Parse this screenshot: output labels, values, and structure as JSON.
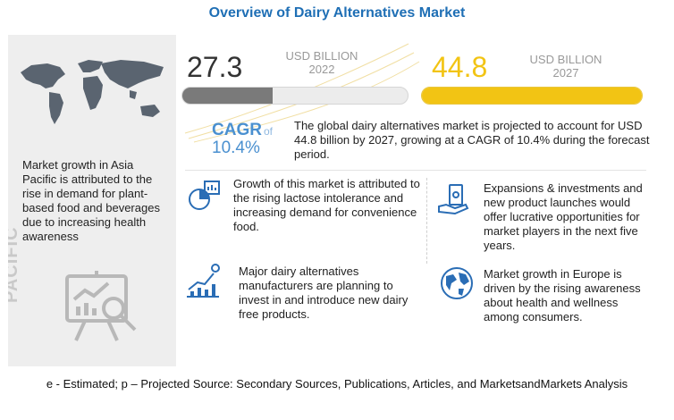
{
  "title": "Overview of Dairy Alternatives Market",
  "left_panel": {
    "description": "Market growth in Asia Pacific is attributed to the rise in demand for plant-based food and beverages due to increasing health awareness",
    "region_label": "ASIA PACIFIC"
  },
  "market_2022": {
    "value": "27.3",
    "unit": "USD BILLION",
    "year": "2022",
    "bar_fill_fraction": 0.4
  },
  "market_2027": {
    "value": "44.8",
    "unit": "USD BILLION",
    "year": "2027",
    "bar_fill_fraction": 1.0
  },
  "cagr": {
    "label": "CAGR",
    "of": "of",
    "value": "10.4%"
  },
  "summary": "The global dairy alternatives market is projected to account for USD 44.8 billion by 2027, growing at a CAGR of 10.4% during the forecast period.",
  "insights": [
    {
      "icon": "lactose-chart-icon",
      "text": "Growth of this market is attributed to the rising lactose intolerance and increasing demand for convenience food."
    },
    {
      "icon": "investment-hand-icon",
      "text": "Expansions & investments and new product launches would offer lucrative opportunities for market players in the next five years."
    },
    {
      "icon": "growth-bars-icon",
      "text": "Major dairy alternatives manufacturers are planning to invest in and introduce new dairy free products."
    },
    {
      "icon": "globe-icon",
      "text": "Market growth in Europe is driven by the rising awareness about health and wellness among consumers."
    }
  ],
  "footer": "e - Estimated; p – Projected  Source: Secondary Sources, Publications, Articles, and MarketsandMarkets Analysis",
  "colors": {
    "title": "#1f6fb5",
    "accent_yellow": "#f2c414",
    "bar_grey": "#7a7a7a",
    "cagr_blue": "#4a90d0"
  }
}
